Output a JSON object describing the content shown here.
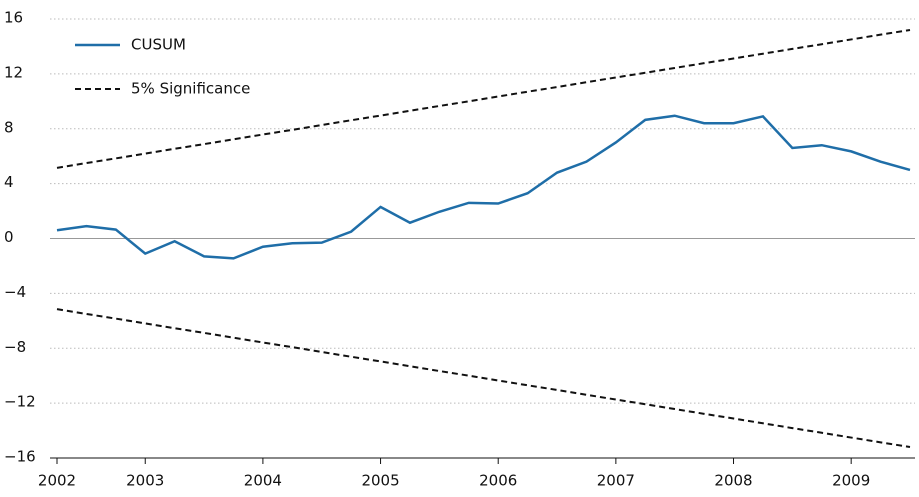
{
  "chart_data": {
    "type": "line",
    "categories": [
      "2002",
      null,
      null,
      "2003",
      null,
      null,
      null,
      "2004",
      null,
      null,
      null,
      "2005",
      null,
      null,
      null,
      "2006",
      null,
      null,
      null,
      "2007",
      null,
      null,
      null,
      "2008",
      null,
      null,
      null,
      "2009",
      null,
      null
    ],
    "series": [
      {
        "name": "CUSUM",
        "color": "#1f6ea8",
        "dash": false,
        "values": [
          0.6,
          0.9,
          0.65,
          -1.1,
          -0.2,
          -1.3,
          -1.45,
          -0.6,
          -0.35,
          -0.3,
          0.5,
          2.3,
          1.15,
          1.95,
          2.6,
          2.55,
          3.3,
          4.8,
          5.6,
          7.0,
          8.65,
          8.95,
          8.4,
          8.4,
          8.9,
          6.6,
          6.8,
          6.35,
          5.6,
          5.0
        ]
      },
      {
        "name": "5% Significance",
        "color": "#111111",
        "dash": true,
        "values": [
          5.15,
          5.5,
          5.84,
          6.19,
          6.54,
          6.88,
          7.23,
          7.58,
          7.92,
          8.27,
          8.62,
          8.96,
          9.31,
          9.66,
          10.0,
          10.35,
          10.7,
          11.04,
          11.39,
          11.74,
          12.08,
          12.43,
          12.78,
          13.12,
          13.47,
          13.82,
          14.16,
          14.51,
          14.86,
          15.2
        ]
      },
      {
        "color": "#111111",
        "dash": true,
        "values": [
          -5.15,
          -5.5,
          -5.84,
          -6.19,
          -6.54,
          -6.88,
          -7.23,
          -7.58,
          -7.92,
          -8.27,
          -8.62,
          -8.96,
          -9.31,
          -9.66,
          -10.0,
          -10.35,
          -10.7,
          -11.04,
          -11.39,
          -11.74,
          -12.08,
          -12.43,
          -12.78,
          -13.12,
          -13.47,
          -13.82,
          -14.16,
          -14.51,
          -14.86,
          -15.2
        ]
      }
    ],
    "ylim": [
      -16,
      16
    ],
    "yticks": [
      {
        "value": -16,
        "label": "−16"
      },
      {
        "value": -12,
        "label": "−12"
      },
      {
        "value": -8,
        "label": "−8"
      },
      {
        "value": -4,
        "label": "−4"
      },
      0,
      4,
      8,
      12,
      16
    ],
    "grid": true,
    "legend": "top-left"
  }
}
